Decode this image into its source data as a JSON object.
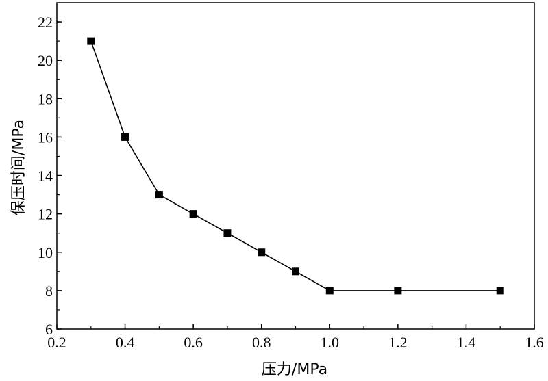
{
  "chart_data": {
    "type": "line",
    "xlabel": "压力/MPa",
    "ylabel": "保压时间/MPa",
    "xlim": [
      0.2,
      1.6
    ],
    "ylim": [
      6,
      23
    ],
    "x_ticks": [
      0.2,
      0.4,
      0.6,
      0.8,
      1.0,
      1.2,
      1.4,
      1.6
    ],
    "x_tick_labels": [
      "0.2",
      "0.4",
      "0.6",
      "0.8",
      "1.0",
      "1.2",
      "1.4",
      "1.6"
    ],
    "y_ticks": [
      6,
      8,
      10,
      12,
      14,
      16,
      18,
      20,
      22
    ],
    "y_tick_labels": [
      "6",
      "8",
      "10",
      "12",
      "14",
      "16",
      "18",
      "20",
      "22"
    ],
    "grid": false,
    "marker": "square",
    "color": "#000000",
    "series": [
      {
        "x": [
          0.3,
          0.4,
          0.5,
          0.6,
          0.7,
          0.8,
          0.9,
          1.0,
          1.2,
          1.5
        ],
        "y": [
          21,
          16,
          13,
          12,
          11,
          10,
          9,
          8,
          8,
          8
        ]
      }
    ]
  }
}
